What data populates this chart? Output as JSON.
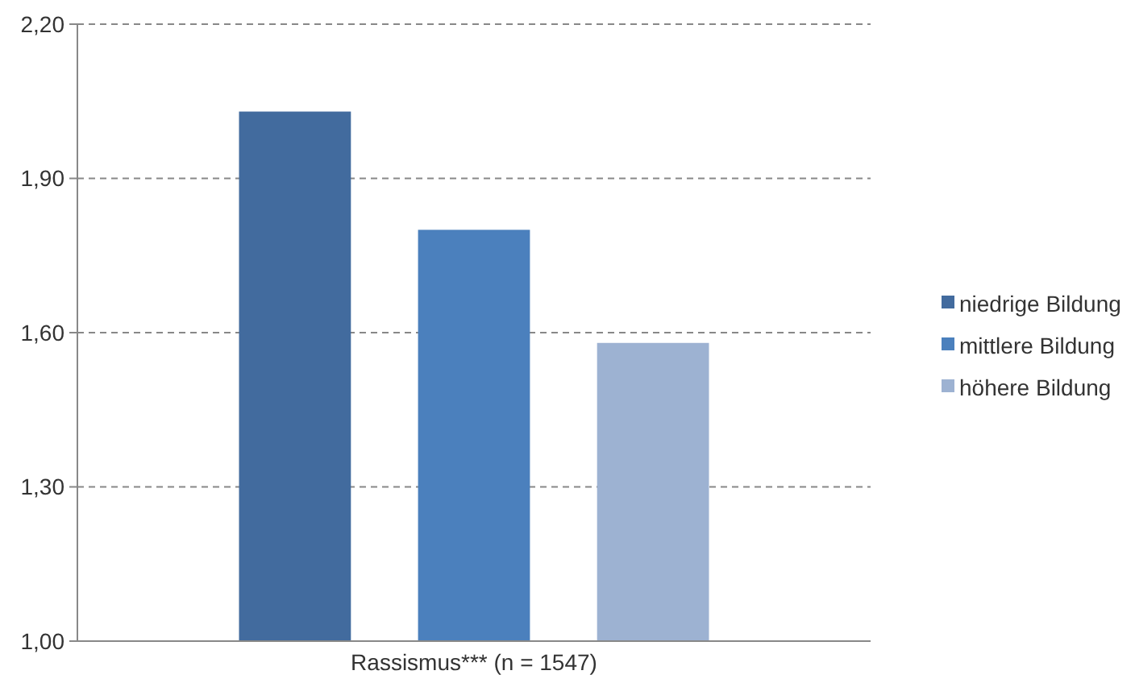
{
  "chart_data": {
    "type": "bar",
    "categories": [
      "Rassismus*** (n = 1547)"
    ],
    "series": [
      {
        "name": "niedrige Bildung",
        "color": "#426b9e",
        "values": [
          2.03
        ]
      },
      {
        "name": "mittlere Bildung",
        "color": "#4b80bd",
        "values": [
          1.8
        ]
      },
      {
        "name": "höhere Bildung",
        "color": "#9db2d2",
        "values": [
          1.58
        ]
      }
    ],
    "ylim": [
      1.0,
      2.2
    ],
    "yticks": [
      {
        "value": 1.0,
        "label": "1,00"
      },
      {
        "value": 1.3,
        "label": "1,30"
      },
      {
        "value": 1.6,
        "label": "1,60"
      },
      {
        "value": 1.9,
        "label": "1,90"
      },
      {
        "value": 2.2,
        "label": "2,20"
      }
    ],
    "grid": "y",
    "legend": "right"
  }
}
